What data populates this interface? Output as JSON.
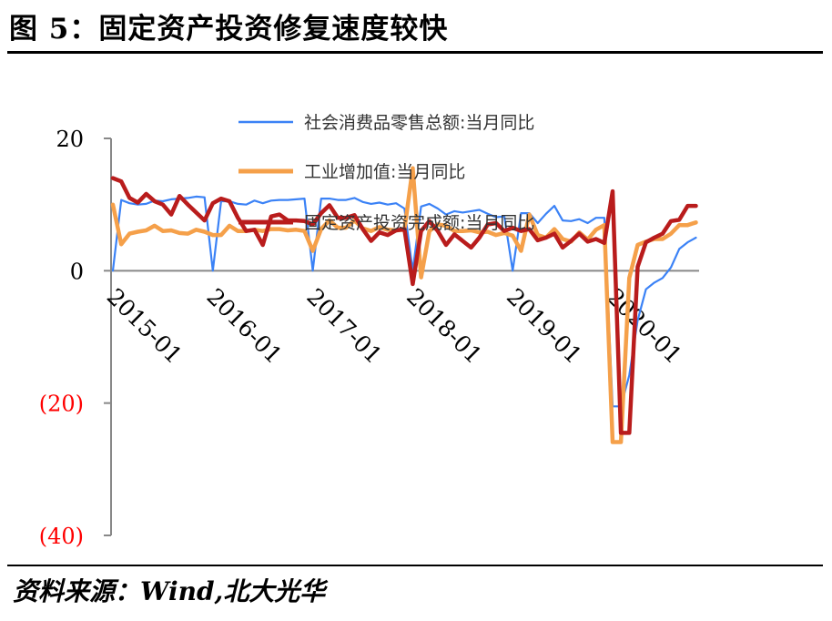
{
  "figure": {
    "title": "图 5：固定资产投资修复速度较快",
    "source": "资料来源：Wind,北大光华"
  },
  "chart_data": {
    "type": "line",
    "ylim": [
      -40,
      20
    ],
    "yticks": [
      20,
      0,
      -20,
      -40
    ],
    "ytick_labels": [
      "20",
      "0",
      "(20)",
      "(40)"
    ],
    "ytick_colors": [
      "#000000",
      "#000000",
      "#ff0000",
      "#ff0000"
    ],
    "xticks": [
      "2015-01",
      "2016-01",
      "2017-01",
      "2018-01",
      "2019-01",
      "2020-01"
    ],
    "x_start": "2015-01",
    "x_end": "2020-06",
    "grid": false,
    "legend_position": "top-center",
    "series": [
      {
        "name": "社会消费品零售总额:当月同比",
        "color": "#3b82f6",
        "values": [
          0,
          10.7,
          10.2,
          10.0,
          10.1,
          10.6,
          10.5,
          10.8,
          10.9,
          11.0,
          11.2,
          11.1,
          0,
          10.5,
          10.5,
          10.1,
          10.0,
          10.6,
          10.2,
          10.6,
          10.7,
          10.7,
          10.8,
          10.9,
          0,
          10.9,
          10.9,
          10.7,
          10.7,
          11.0,
          10.4,
          10.1,
          10.3,
          10.0,
          10.2,
          9.4,
          0,
          9.7,
          10.1,
          9.4,
          8.5,
          9.0,
          8.8,
          9.0,
          9.2,
          8.6,
          8.1,
          8.2,
          0,
          8.7,
          8.7,
          7.2,
          8.6,
          9.8,
          7.6,
          7.5,
          7.8,
          7.2,
          8.0,
          8.0,
          -20.5,
          -20.5,
          -15.8,
          -7.5,
          -2.8,
          -1.8,
          -1.1,
          0.5,
          3.3,
          4.3,
          5.0
        ]
      },
      {
        "name": "工业增加值:当月同比",
        "color": "#f5a04a",
        "values": [
          10.0,
          4.0,
          5.6,
          5.9,
          6.1,
          6.8,
          6.0,
          6.1,
          5.7,
          5.6,
          6.2,
          5.9,
          5.4,
          5.4,
          6.8,
          6.0,
          6.0,
          6.2,
          6.0,
          6.3,
          6.3,
          6.1,
          6.2,
          6.0,
          3.0,
          6.3,
          7.6,
          6.5,
          6.5,
          7.6,
          6.4,
          6.0,
          6.6,
          6.2,
          6.1,
          6.2,
          15.5,
          -1.0,
          6.0,
          7.0,
          6.8,
          6.0,
          6.0,
          6.1,
          5.8,
          5.9,
          5.4,
          5.7,
          5.3,
          3.0,
          8.5,
          5.4,
          5.0,
          6.3,
          4.8,
          4.4,
          5.8,
          4.7,
          6.2,
          6.9,
          -25.9,
          -25.9,
          -1.1,
          3.9,
          4.4,
          4.8,
          4.8,
          5.6,
          6.9,
          6.9,
          7.3
        ]
      },
      {
        "name": "固定资产投资完成额:当月同比",
        "color": "#b91c1c",
        "values": [
          14.0,
          13.5,
          11.0,
          10.3,
          11.6,
          10.5,
          10.0,
          8.5,
          11.3,
          10.0,
          8.8,
          7.6,
          10.2,
          10.9,
          10.5,
          8.0,
          6.0,
          6.2,
          3.9,
          8.2,
          8.5,
          7.6,
          7.6,
          7.5,
          7.0,
          8.7,
          9.9,
          8.0,
          8.0,
          8.4,
          6.3,
          4.5,
          5.8,
          5.4,
          6.1,
          6.3,
          -2.0,
          6.0,
          7.5,
          6.0,
          3.9,
          5.5,
          4.5,
          3.5,
          5.0,
          7.0,
          7.2,
          6.0,
          6.5,
          6.0,
          6.3,
          4.6,
          5.0,
          5.6,
          3.5,
          4.5,
          5.6,
          4.4,
          4.8,
          4.2,
          12.0,
          -24.5,
          -24.5,
          0.6,
          4.3,
          5.0,
          5.6,
          7.5,
          7.7,
          9.8,
          9.8
        ]
      }
    ]
  }
}
